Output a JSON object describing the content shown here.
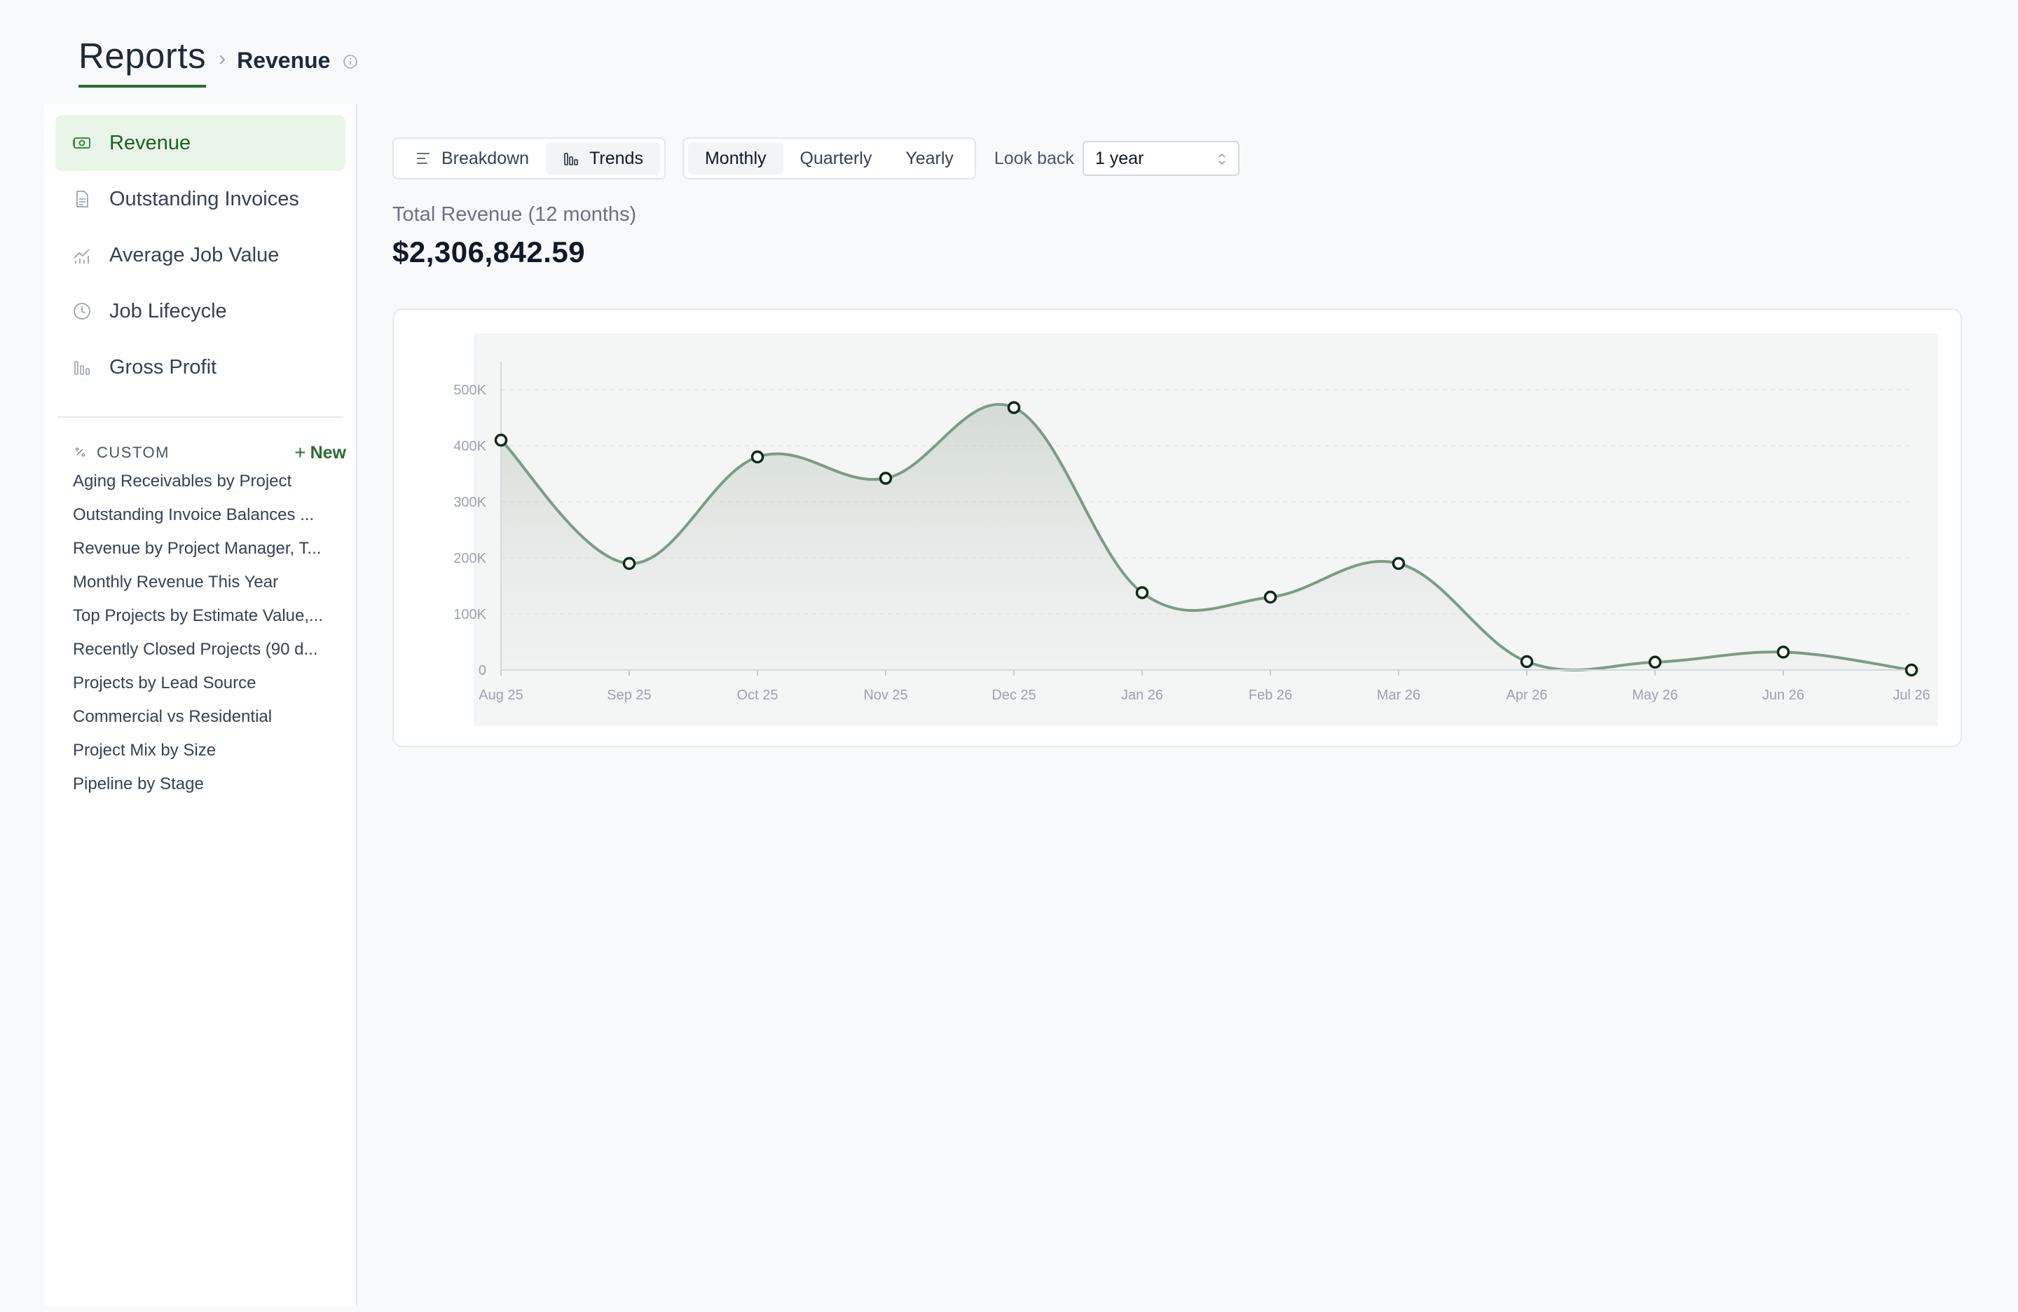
{
  "header": {
    "title": "Reports",
    "separator": "›",
    "current": "Revenue"
  },
  "sidebar": {
    "items": [
      {
        "label": "Revenue",
        "icon": "money-icon",
        "active": true
      },
      {
        "label": "Outstanding Invoices",
        "icon": "document-icon",
        "active": false
      },
      {
        "label": "Average Job Value",
        "icon": "trend-chart-icon",
        "active": false
      },
      {
        "label": "Job Lifecycle",
        "icon": "clock-icon",
        "active": false
      },
      {
        "label": "Gross Profit",
        "icon": "bar-chart-icon",
        "active": false
      }
    ],
    "custom": {
      "label": "CUSTOM",
      "new_label": "New",
      "items": [
        "Aging Receivables by Project",
        "Outstanding Invoice Balances ...",
        "Revenue by Project Manager, T...",
        "Monthly Revenue This Year",
        "Top Projects by Estimate Value,...",
        "Recently Closed Projects (90 d...",
        "Projects by Lead Source",
        "Commercial vs Residential",
        "Project Mix by Size",
        "Pipeline by Stage"
      ]
    }
  },
  "toolbar": {
    "view_tabs": [
      {
        "label": "Breakdown",
        "icon": "list-icon",
        "selected": false
      },
      {
        "label": "Trends",
        "icon": "bar-chart-icon",
        "selected": true
      }
    ],
    "period_tabs": [
      {
        "label": "Monthly",
        "selected": true
      },
      {
        "label": "Quarterly",
        "selected": false
      },
      {
        "label": "Yearly",
        "selected": false
      }
    ],
    "lookback_label": "Look back",
    "lookback_value": "1 year"
  },
  "summary": {
    "label": "Total Revenue (12 months)",
    "value": "$2,306,842.59"
  },
  "colors": {
    "accent": "#2c6b2f",
    "line": "#7f9a87",
    "point_stroke": "#0f2a18"
  },
  "chart_data": {
    "type": "area",
    "categories": [
      "Aug 25",
      "Sep 25",
      "Oct 25",
      "Nov 25",
      "Dec 25",
      "Jan 26",
      "Feb 26",
      "Mar 26",
      "Apr 26",
      "May 26",
      "Jun 26",
      "Jul 26"
    ],
    "values": [
      410000,
      190000,
      380000,
      342000,
      468000,
      138000,
      130000,
      190000,
      15000,
      14000,
      32000,
      0
    ],
    "y_ticks": [
      "0",
      "100K",
      "200K",
      "300K",
      "400K",
      "500K"
    ],
    "ylim": [
      0,
      500000
    ],
    "grid": true
  }
}
